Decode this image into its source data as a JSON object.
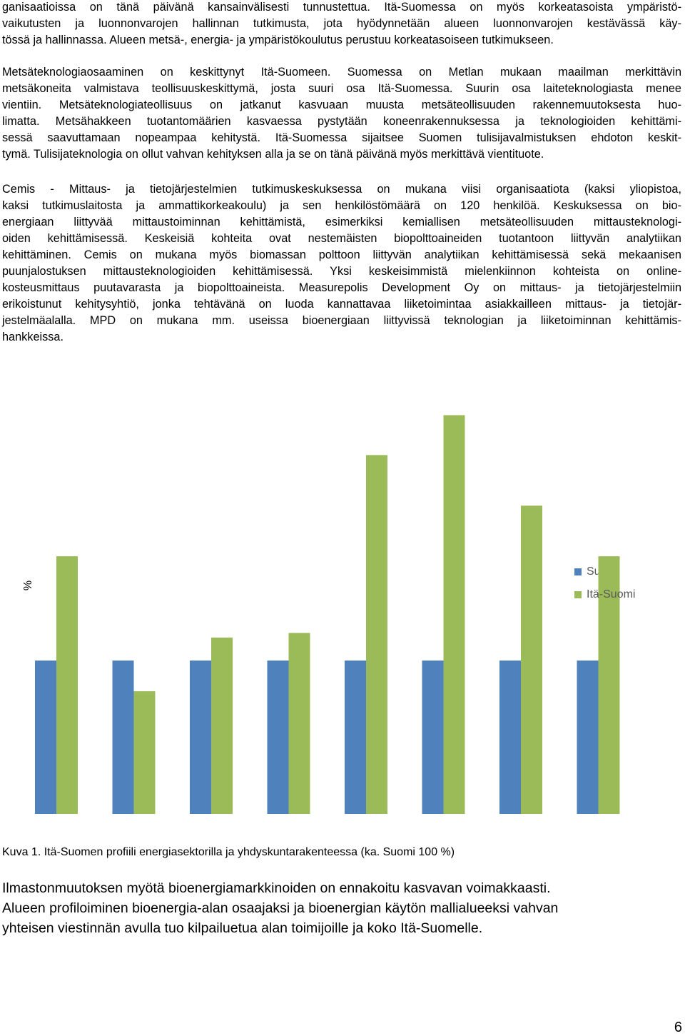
{
  "paragraphs": [
    [
      "ganisaatioissa on tänä päivänä kansainvälisesti tunnustettua. Itä-Suomessa on myös korkeatasoista ympäristö-",
      "vaikutusten ja luonnonvarojen hallinnan tutkimusta, jota hyödynnetään alueen luonnonvarojen kestävässä käy-",
      "tössä ja hallinnassa. Alueen metsä-, energia- ja ympäristökoulutus perustuu korkeatasoiseen tutkimukseen."
    ],
    [
      "Metsäteknologiaosaaminen on keskittynyt Itä-Suomeen. Suomessa on Metlan mukaan maailman merkittävin",
      "metsäkoneita valmistava teollisuuskeskittymä, josta suuri osa Itä-Suomessa. Suurin osa laiteteknologiasta menee",
      "vientiin. Metsäteknologiateollisuus on jatkanut kasvuaan muusta metsäteollisuuden rakennemuutoksesta huo-",
      "limatta. Metsähakkeen tuotantomäärien kasvaessa pystytään koneenrakennuksessa ja teknologioiden kehittämi-",
      "sessä saavuttamaan nopeampaa kehitystä. Itä-Suomessa sijaitsee Suomen tulisijavalmistuksen ehdoton keskit-",
      "tymä. Tulisijateknologia on ollut vahvan kehityksen alla ja se on tänä päivänä myös merkittävä vientituote."
    ],
    [
      "Cemis - Mittaus- ja tietojärjestelmien tutkimuskeskuksessa on mukana viisi organisaatiota (kaksi yliopistoa,",
      "kaksi tutkimuslaitosta ja ammattikorkeakoulu) ja sen henkilöstömäärä on 120 henkilöä. Keskuksessa on bio-",
      "energiaan liittyvää mittaustoiminnan kehittämistä, esimerkiksi kemiallisen metsäteollisuuden mittausteknologi-",
      "oiden kehittämisessä. Keskeisiä kohteita ovat nestemäisten biopolttoaineiden tuotantoon liittyvän analytiikan",
      "kehittäminen. Cemis on mukana myös biomassan polttoon liittyvän analytiikan kehittämisessä sekä mekaanisen",
      "puunjalostuksen mittausteknologioiden kehittämisessä. Yksi keskeisimmistä mielenkiinnon kohteista on online-",
      "kosteusmittaus puutavarasta ja biopolttoaineista. Measurepolis Development Oy on mittaus- ja tietojärjestelmiin",
      "erikoistunut kehitysyhtiö, jonka tehtävänä on luoda kannattavaa liiketoimintaa asiakkailleen mittaus- ja tietojär-",
      "jestelmäalalla. MPD on mukana mm. useissa bioenergiaan liittyvissä teknologian ja liiketoiminnan kehittämis-",
      "hankkeissa."
    ]
  ],
  "chart_data": {
    "type": "bar",
    "y_label": "%",
    "categories": [
      null,
      null,
      null,
      null,
      null,
      null,
      null,
      null
    ],
    "series": [
      {
        "name": "Suomi",
        "color": "#4f81bd",
        "values": [
          100,
          100,
          100,
          100,
          100,
          100,
          100,
          100
        ]
      },
      {
        "name": "Itä-Suomi",
        "color": "#9bbb59",
        "values": [
          168,
          80,
          115,
          118,
          234,
          260,
          201,
          168
        ]
      }
    ],
    "ylim": [
      0,
      270
    ],
    "legend": "right"
  },
  "caption": "Kuva 1. Itä-Suomen profiili energiasektorilla ja yhdyskuntarakenteessa (ka. Suomi 100 %)",
  "closing": [
    "Ilmastonmuutoksen myötä bioenergiamarkkinoiden on ennakoitu kasvavan voimakkaasti.",
    "Alueen profiloiminen bioenergia-alan osaajaksi ja bioenergian käytön mallialueeksi vahvan",
    "yhteisen viestinnän avulla tuo kilpailuetua alan toimijoille ja koko Itä-Suomelle."
  ],
  "page_number": 6
}
